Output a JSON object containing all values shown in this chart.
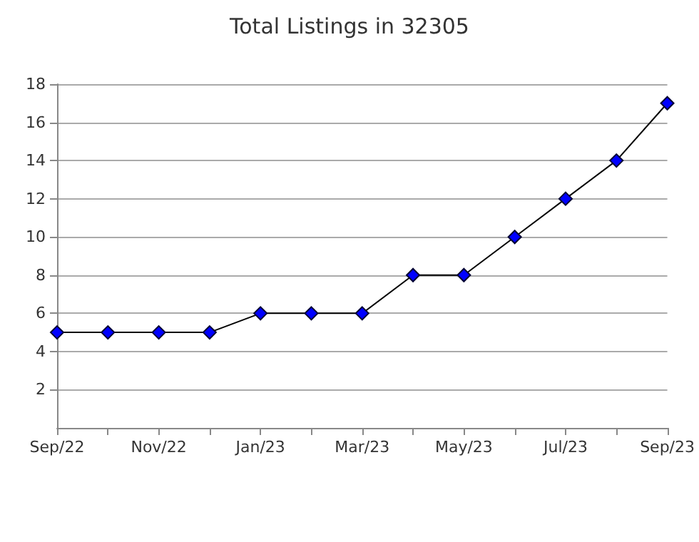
{
  "chart_data": {
    "type": "line",
    "title": "Total Listings in 32305",
    "categories": [
      "Sep/22",
      null,
      "Nov/22",
      null,
      "Jan/23",
      null,
      "Mar/23",
      null,
      "May/23",
      null,
      "Jul/23",
      null,
      "Sep/23"
    ],
    "series": [
      {
        "color": "#0000ff",
        "values": [
          5,
          5,
          5,
          5,
          6,
          6,
          6,
          8,
          8,
          10,
          12,
          14,
          17
        ]
      }
    ],
    "ylim": [
      0,
      18
    ],
    "yticks": [
      2,
      4,
      6,
      8,
      10,
      12,
      14,
      16,
      18
    ],
    "grid": "y",
    "marker": "diamond",
    "line_style": "solid"
  }
}
